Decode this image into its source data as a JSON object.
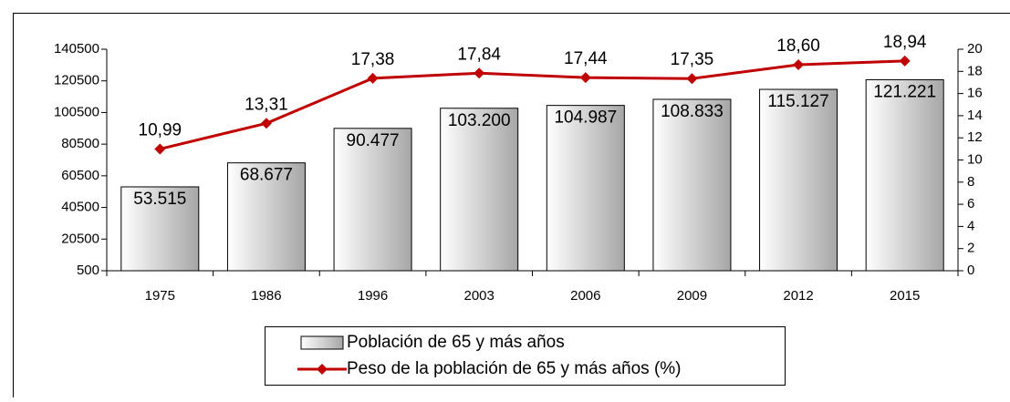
{
  "chart_data": {
    "type": "bar",
    "categories": [
      "1975",
      "1986",
      "1996",
      "2003",
      "2006",
      "2009",
      "2012",
      "2015"
    ],
    "series": [
      {
        "name": "Población de 65 y más años",
        "color": "#a6a6a6",
        "values": [
          53515,
          68677,
          90477,
          103200,
          104987,
          108833,
          115127,
          121221
        ],
        "value_labels": [
          "53.515",
          "68.677",
          "90.477",
          "103.200",
          "104.987",
          "108.833",
          "115.127",
          "121.221"
        ]
      },
      {
        "name": "Peso de la población de 65 y más años (%)",
        "type": "line",
        "axis": "y2",
        "color": "#c00000",
        "values": [
          10.99,
          13.31,
          17.38,
          17.84,
          17.44,
          17.35,
          18.6,
          18.94
        ],
        "value_labels": [
          "10,99",
          "13,31",
          "17,38",
          "17,84",
          "17,44",
          "17,35",
          "18,60",
          "18,94"
        ]
      }
    ],
    "ylim": [
      500,
      140500
    ],
    "yticks": [
      500,
      20500,
      40500,
      60500,
      80500,
      100500,
      120500,
      140500
    ],
    "y2lim": [
      0,
      20
    ],
    "y2ticks": [
      0,
      2,
      4,
      6,
      8,
      10,
      12,
      14,
      16,
      18,
      20
    ],
    "legend": "bottom"
  }
}
